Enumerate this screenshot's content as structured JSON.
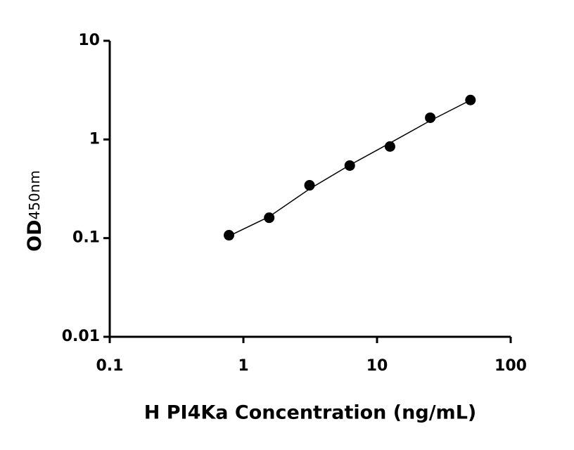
{
  "chart_data": {
    "type": "scatter",
    "log_x": true,
    "log_y": true,
    "x_label": "H PI4Ka Concentration (ng/mL)",
    "y_label": "OD",
    "y_label_sub": "450nm",
    "xlim": [
      0.1,
      100
    ],
    "xticks": [
      0.1,
      1,
      10,
      100
    ],
    "ylim": [
      0.01,
      10
    ],
    "yticks": [
      0.01,
      0.1,
      1,
      10
    ],
    "color": "#000000",
    "x": [
      0.78,
      1.56,
      3.125,
      6.25,
      12.5,
      25,
      50
    ],
    "values": [
      0.107,
      0.161,
      0.343,
      0.544,
      0.848,
      1.66,
      2.51
    ],
    "curve": {
      "x": [
        0.78,
        1.56,
        3.125,
        6.25,
        12.5,
        25,
        50
      ],
      "values": [
        0.105,
        0.165,
        0.315,
        0.55,
        0.92,
        1.55,
        2.5
      ]
    }
  }
}
